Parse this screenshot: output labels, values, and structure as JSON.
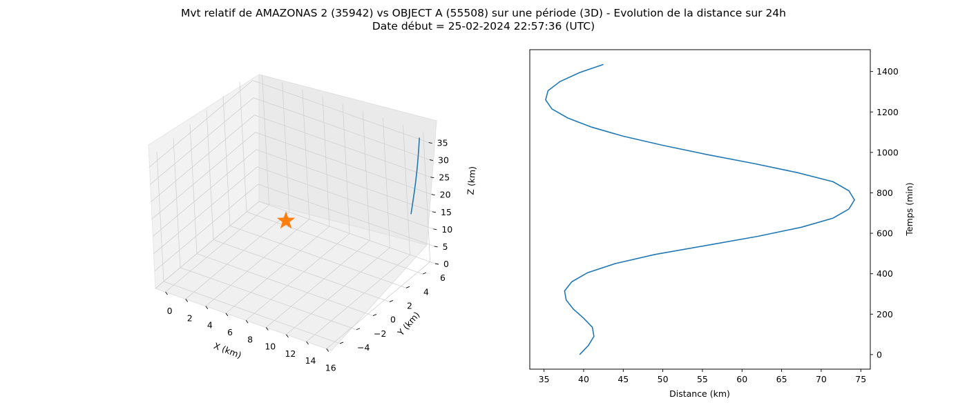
{
  "title_line1": "Mvt relatif de AMAZONAS 2 (35942) vs OBJECT A (55508) sur une période (3D) - Evolution de la distance sur 24h",
  "title_line2": "Date début = 25-02-2024 22:57:36 (UTC)",
  "colors": {
    "line": "#1f77b4",
    "marker": "#ff7f0e",
    "pane": "#f2f2f2",
    "grid": "#d0d0d0"
  },
  "chart_data": [
    {
      "type": "line3d",
      "xlabel": "X (km)",
      "ylabel": "Y (km)",
      "zlabel": "Z (km)",
      "xticks": [
        "0",
        "2",
        "4",
        "6",
        "8",
        "10",
        "12",
        "14",
        "16"
      ],
      "yticks": [
        "−4",
        "−2",
        "0",
        "2",
        "4",
        "6"
      ],
      "zticks": [
        "0",
        "5",
        "10",
        "15",
        "20",
        "25",
        "30",
        "35"
      ],
      "xlim": [
        -1,
        16.5
      ],
      "ylim": [
        -5,
        7.5
      ],
      "zlim": [
        0,
        37.5
      ],
      "trajectory": {
        "start": {
          "x": 15.2,
          "y": 6.5,
          "z": 15
        },
        "end": {
          "x": 16.2,
          "y": 6.8,
          "z": 37.5
        }
      },
      "marker": {
        "shape": "star",
        "x": 2.5,
        "y": 6.5,
        "z": 0
      },
      "grid": true
    },
    {
      "type": "line",
      "xlabel": "Distance (km)",
      "ylabel": "Temps (min)",
      "xlim": [
        33.2,
        76.2
      ],
      "ylim": [
        -72,
        1508
      ],
      "xticks": [
        35,
        40,
        45,
        50,
        55,
        60,
        65,
        70,
        75
      ],
      "yticks": [
        0,
        200,
        400,
        600,
        800,
        1000,
        1200,
        1400
      ],
      "series": [
        {
          "distance": [
            39.5,
            40.6,
            41.3,
            41.1,
            40.0,
            38.7,
            37.8,
            37.6,
            38.5,
            40.5,
            44.0,
            49.0,
            55.5,
            62.0,
            67.5,
            71.5,
            73.5,
            74.2,
            73.5,
            71.5,
            67.0,
            61.5,
            55.5,
            50.0,
            45.0,
            41.0,
            38.0,
            36.0,
            35.2,
            35.5,
            37.0,
            39.5,
            42.5
          ],
          "time": [
            0,
            45,
            90,
            135,
            180,
            225,
            270,
            315,
            360,
            405,
            450,
            495,
            540,
            585,
            630,
            675,
            720,
            765,
            810,
            855,
            900,
            945,
            990,
            1035,
            1080,
            1125,
            1170,
            1215,
            1260,
            1305,
            1350,
            1395,
            1435
          ]
        }
      ],
      "grid": false
    }
  ]
}
